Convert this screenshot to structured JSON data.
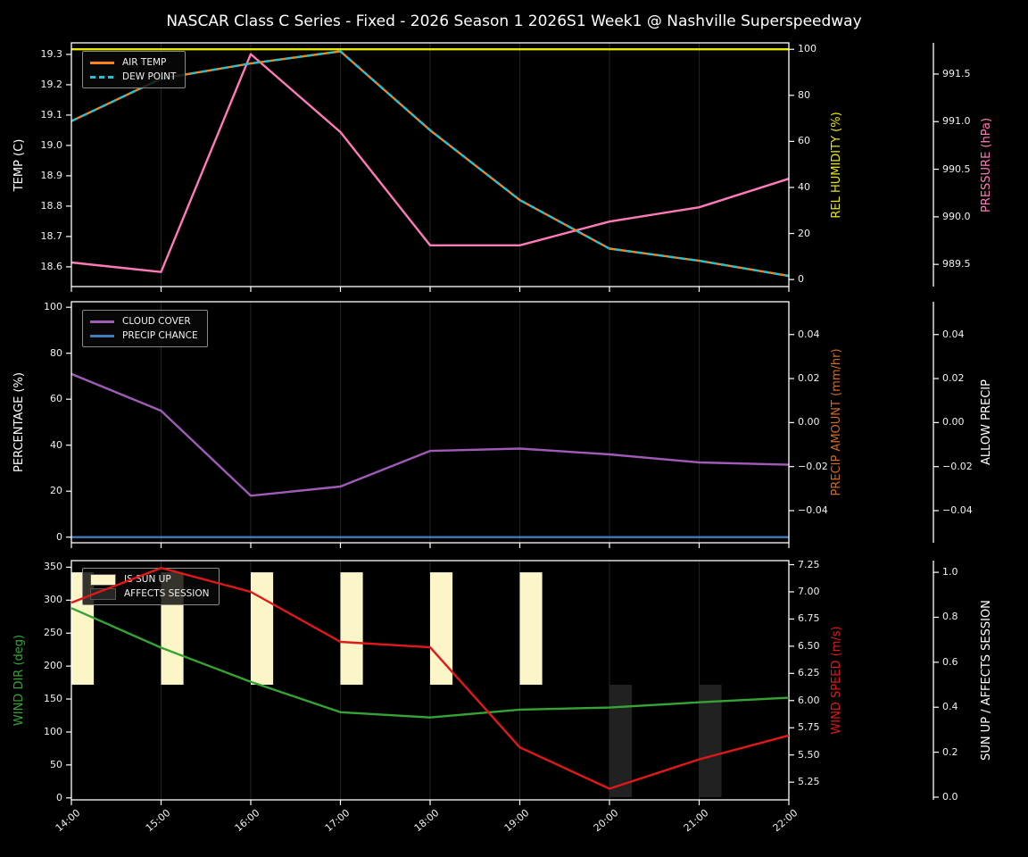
{
  "title": "NASCAR Class C Series - Fixed - 2026 Season 1 2026S1 Week1 @ Nashville Superspeedway",
  "figure_colors": {
    "background": "#000000",
    "text": "#f0f0f0",
    "grid": "#242424",
    "spine": "#ffffff"
  },
  "chart_data": {
    "type": "line",
    "x_categories": [
      "14:00",
      "15:00",
      "16:00",
      "17:00",
      "18:00",
      "19:00",
      "20:00",
      "21:00",
      "22:00"
    ],
    "panels": [
      {
        "id": "temperature-panel",
        "axes": {
          "left": {
            "title": "TEMP (C)",
            "title_color": "#ffffff",
            "min": 18.535,
            "max": 19.338,
            "tick_values": [
              19.3,
              19.2,
              19.1,
              19.0,
              18.9,
              18.8,
              18.7,
              18.6
            ],
            "tick_labels": [
              "19.3",
              "19.2",
              "19.1",
              "19.0",
              "18.9",
              "18.8",
              "18.7",
              "18.6"
            ]
          },
          "right1": {
            "title": "REL HUMIDITY (%)",
            "title_color": "#e8e800",
            "min": -3.05,
            "max": 102.8,
            "tick_values": [
              100,
              80,
              60,
              40,
              20,
              0
            ],
            "tick_labels": [
              "100",
              "80",
              "60",
              "40",
              "20",
              "0"
            ]
          },
          "right2": {
            "title": "PRESSURE (hPa)",
            "title_color": "#ff7ab8",
            "min": 989.267,
            "max": 991.828,
            "tick_values": [
              991.5,
              991.0,
              990.5,
              990.0,
              989.5
            ],
            "tick_labels": [
              "991.5",
              "991.0",
              "990.5",
              "990.0",
              "989.5"
            ]
          }
        },
        "legend": [
          {
            "label": "AIR TEMP",
            "swatch": "line",
            "color": "#fb8418"
          },
          {
            "label": "DEW POINT",
            "swatch": "dash",
            "color": "#1fc3d4"
          }
        ],
        "series": [
          {
            "name": "REL HUMIDITY",
            "axis": "right1",
            "color": "#e8e800",
            "dash": false,
            "values": [
              100,
              100,
              100,
              100,
              100,
              100,
              100,
              100,
              100
            ]
          },
          {
            "name": "PRESSURE",
            "axis": "right2",
            "color": "#ff7ab8",
            "dash": false,
            "values": [
              989.52,
              989.42,
              991.71,
              990.89,
              989.7,
              989.7,
              989.95,
              990.1,
              990.4
            ]
          },
          {
            "name": "AIR TEMP",
            "axis": "left",
            "color": "#fb8418",
            "dash": false,
            "values": [
              19.08,
              19.22,
              19.27,
              19.31,
              19.05,
              18.82,
              18.66,
              18.62,
              18.57
            ]
          },
          {
            "name": "DEW POINT",
            "axis": "left",
            "color": "#1fc3d4",
            "dash": true,
            "values": [
              19.08,
              19.22,
              19.27,
              19.31,
              19.05,
              18.82,
              18.66,
              18.62,
              18.57
            ]
          }
        ]
      },
      {
        "id": "precipitation-panel",
        "axes": {
          "left": {
            "title": "PERCENTAGE (%)",
            "title_color": "#ffffff",
            "min": -2.45,
            "max": 102.4,
            "tick_values": [
              100,
              80,
              60,
              40,
              20,
              0
            ],
            "tick_labels": [
              "100",
              "80",
              "60",
              "40",
              "20",
              "0"
            ]
          },
          "right1": {
            "title": "PRECIP AMOUNT (mm/hr)",
            "title_color": "#cf6a24",
            "min": -0.0546,
            "max": 0.0549,
            "tick_values": [
              0.04,
              0.02,
              0.0,
              -0.02,
              -0.04
            ],
            "tick_labels": [
              "0.04",
              "0.02",
              "0.00",
              "−0.02",
              "−0.04"
            ]
          },
          "right2": {
            "title": "ALLOW PRECIP",
            "title_color": "#ffffff",
            "min": -0.0546,
            "max": 0.0549,
            "tick_values": [
              0.04,
              0.02,
              0.0,
              -0.02,
              -0.04
            ],
            "tick_labels": [
              "0.04",
              "0.02",
              "0.00",
              "−0.02",
              "−0.04"
            ]
          }
        },
        "legend": [
          {
            "label": "CLOUD COVER",
            "swatch": "line",
            "color": "#a05ab8"
          },
          {
            "label": "PRECIP CHANCE",
            "swatch": "line",
            "color": "#3d7dbf"
          }
        ],
        "series": [
          {
            "name": "CLOUD COVER",
            "axis": "left",
            "color": "#a05ab8",
            "dash": false,
            "values": [
              71,
              55,
              18,
              22,
              37.5,
              38.5,
              36,
              32.5,
              31.5
            ]
          },
          {
            "name": "PRECIP CHANCE",
            "axis": "left",
            "color": "#3d7dbf",
            "dash": false,
            "values": [
              0,
              0,
              0,
              0,
              0,
              0,
              0,
              0,
              0
            ]
          }
        ]
      },
      {
        "id": "wind-panel",
        "axes": {
          "left": {
            "title": "WIND DIR (deg)",
            "title_color": "#35a435",
            "min": -3,
            "max": 360,
            "tick_values": [
              350,
              300,
              250,
              200,
              150,
              100,
              50,
              0
            ],
            "tick_labels": [
              "350",
              "300",
              "250",
              "200",
              "150",
              "100",
              "50",
              "0"
            ]
          },
          "right1": {
            "title": "WIND SPEED (m/s)",
            "title_color": "#e01818",
            "min": 5.087,
            "max": 7.287,
            "tick_values": [
              7.25,
              7.0,
              6.75,
              6.5,
              6.25,
              6.0,
              5.75,
              5.5,
              5.25
            ],
            "tick_labels": [
              "7.25",
              "7.00",
              "6.75",
              "6.50",
              "6.25",
              "6.00",
              "5.75",
              "5.50",
              "5.25"
            ]
          },
          "right2": {
            "title": "SUN UP / AFFECTS SESSION",
            "title_color": "#ffffff",
            "min": -0.012,
            "max": 1.052,
            "tick_values": [
              1.0,
              0.8,
              0.6,
              0.4,
              0.2,
              0.0
            ],
            "tick_labels": [
              "1.0",
              "0.8",
              "0.6",
              "0.4",
              "0.2",
              "0.0"
            ]
          }
        },
        "legend": [
          {
            "label": "IS SUN UP",
            "swatch": "patch",
            "color": "#fbf5c7"
          },
          {
            "label": "AFFECTS SESSION",
            "swatch": "patch",
            "color": "#262626"
          }
        ],
        "bars": [
          {
            "name": "IS SUN UP",
            "axis": "right2",
            "color": "#fbf5c7",
            "y0": 0.5,
            "y1": 1.0,
            "on_hours": [
              0,
              1,
              2,
              3,
              4,
              5
            ],
            "width_hours": 0.25
          },
          {
            "name": "AFFECTS SESSION",
            "axis": "right2",
            "color": "#212121",
            "y0": 0.0,
            "y1": 0.5,
            "on_hours": [
              6,
              7
            ],
            "width_hours": 0.25
          }
        ],
        "series": [
          {
            "name": "WIND DIR",
            "axis": "left",
            "color": "#35a435",
            "dash": false,
            "values": [
              288,
              228,
              176,
              130,
              122,
              134,
              137,
              145,
              152
            ]
          },
          {
            "name": "WIND SPEED",
            "axis": "right1",
            "color": "#e01818",
            "dash": false,
            "values": [
              6.9,
              7.22,
              7.0,
              6.54,
              6.49,
              5.57,
              5.19,
              5.46,
              5.68
            ]
          }
        ]
      }
    ]
  }
}
